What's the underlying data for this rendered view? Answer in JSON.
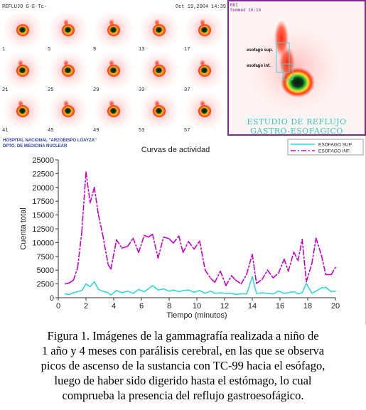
{
  "scan": {
    "app_name": "REFLUJO G-E-Tc-",
    "date": "Oct 19,2004",
    "time": "14:39",
    "frames": [
      "1",
      "5",
      "9",
      "13",
      "17",
      "21",
      "25",
      "29",
      "33",
      "37",
      "41",
      "45",
      "49",
      "53",
      "57"
    ]
  },
  "roi": {
    "header_line1": "ROI",
    "header_line2": "Summed 16:16",
    "label_upper": "esofago sup.",
    "label_lower": "esofago inf.",
    "study_line1": "ESTUDIO DE REFLUJO",
    "study_line2": "GASTRO-ESOFAGICO"
  },
  "hospital": {
    "line1": "HOSPITAL NACIONAL \"ARZOBISPO LOAYZA\"",
    "line2": "DPTO. DE MEDICINA NUCLEAR"
  },
  "chart_data": {
    "type": "line",
    "title": "Curvas de actividad",
    "xlabel": "Tiempo (minutos)",
    "ylabel": "Cuenta total",
    "xlim": [
      0,
      20
    ],
    "ylim": [
      0,
      25000
    ],
    "xticks": [
      "0",
      "2",
      "4",
      "6",
      "8",
      "10",
      "12",
      "14",
      "16",
      "18",
      "20"
    ],
    "yticks": [
      "0",
      "2500",
      "5000",
      "7500",
      "10000",
      "12500",
      "15000",
      "17500",
      "20000",
      "22500",
      "25000"
    ],
    "grid": false,
    "legend_position": "top-right",
    "colors": {
      "sup": "#2fd9d9",
      "inf": "#cc00cc",
      "axis": "#333333"
    },
    "x": [
      0.5,
      0.8,
      1.1,
      1.4,
      1.7,
      2.0,
      2.3,
      2.6,
      2.9,
      3.2,
      3.6,
      3.8,
      4.2,
      4.6,
      5.0,
      5.4,
      5.8,
      6.2,
      6.5,
      6.8,
      7.2,
      7.6,
      8.0,
      8.3,
      8.7,
      9.0,
      9.4,
      9.8,
      10.2,
      10.6,
      11.0,
      11.3,
      11.7,
      12.1,
      12.5,
      12.8,
      13.2,
      13.6,
      14.0,
      14.3,
      14.7,
      15.1,
      15.5,
      15.9,
      16.3,
      16.6,
      17.0,
      17.3,
      17.6,
      17.9,
      18.3,
      18.6,
      19.0,
      19.3,
      19.7,
      20.0
    ],
    "series": [
      {
        "name": "ESOFAGO SUP.",
        "values": [
          700,
          600,
          900,
          1100,
          1300,
          2500,
          2000,
          2900,
          1500,
          1200,
          900,
          500,
          1300,
          900,
          1200,
          800,
          1500,
          1100,
          1600,
          2200,
          1400,
          1600,
          1200,
          1400,
          1100,
          1300,
          1400,
          1000,
          1300,
          800,
          1200,
          800,
          900,
          800,
          800,
          600,
          700,
          700,
          3800,
          800,
          900,
          800,
          700,
          1200,
          800,
          900,
          1100,
          700,
          900,
          2600,
          800,
          1200,
          1800,
          1900,
          1100,
          1200
        ]
      },
      {
        "name": "ESOFAGO INF.",
        "values": [
          2500,
          2700,
          3200,
          5500,
          12000,
          22800,
          17200,
          20000,
          15000,
          11500,
          6000,
          5200,
          10500,
          9000,
          9300,
          10800,
          8200,
          11300,
          11000,
          11500,
          7200,
          11000,
          10700,
          9900,
          11200,
          8200,
          10200,
          8800,
          10300,
          5000,
          3500,
          2800,
          4800,
          2200,
          4000,
          3200,
          2500,
          4300,
          7900,
          2600,
          3300,
          5000,
          3600,
          4500,
          7000,
          4800,
          8300,
          6700,
          10600,
          2900,
          6200,
          10800,
          7600,
          4200,
          4200,
          5500
        ]
      }
    ]
  },
  "caption": {
    "line1": "Figura 1. Imágenes de la gammagrafía realizada a niño de",
    "line2": "1 año y 4 meses con parálisis cerebral, en las que se observa",
    "line3": "picos de ascenso de la sustancia con TC-99 hacia el esófago,",
    "line4": "luego de haber sido digerido hasta el estómago, lo cual",
    "line5": "comprueba la presencia del reflujo gastroesofágico."
  }
}
